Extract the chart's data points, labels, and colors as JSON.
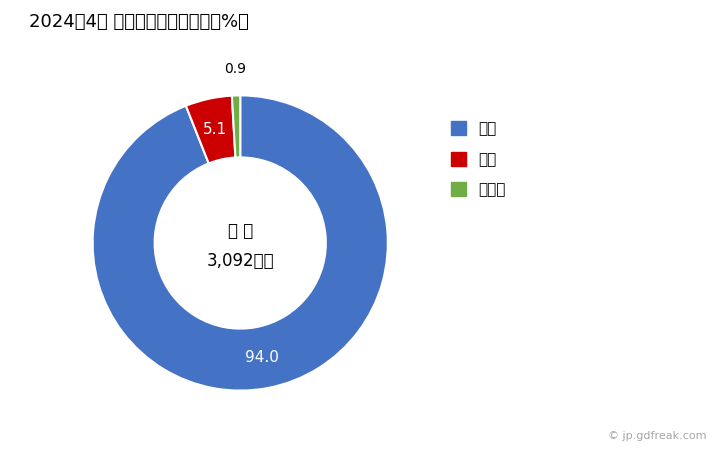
{
  "title": "2024年4月 輸出相手国のシェア（%）",
  "labels": [
    "タイ",
    "韓国",
    "その他"
  ],
  "values": [
    94.0,
    5.1,
    0.9
  ],
  "colors": [
    "#4472C4",
    "#CC0000",
    "#70AD47"
  ],
  "center_text_line1": "総 額",
  "center_text_line2": "3,092万円",
  "legend_labels": [
    "タイ",
    "韓国",
    "その他"
  ],
  "watermark": "© jp.gdfreak.com",
  "background_color": "#FFFFFF",
  "donut_width": 0.42
}
